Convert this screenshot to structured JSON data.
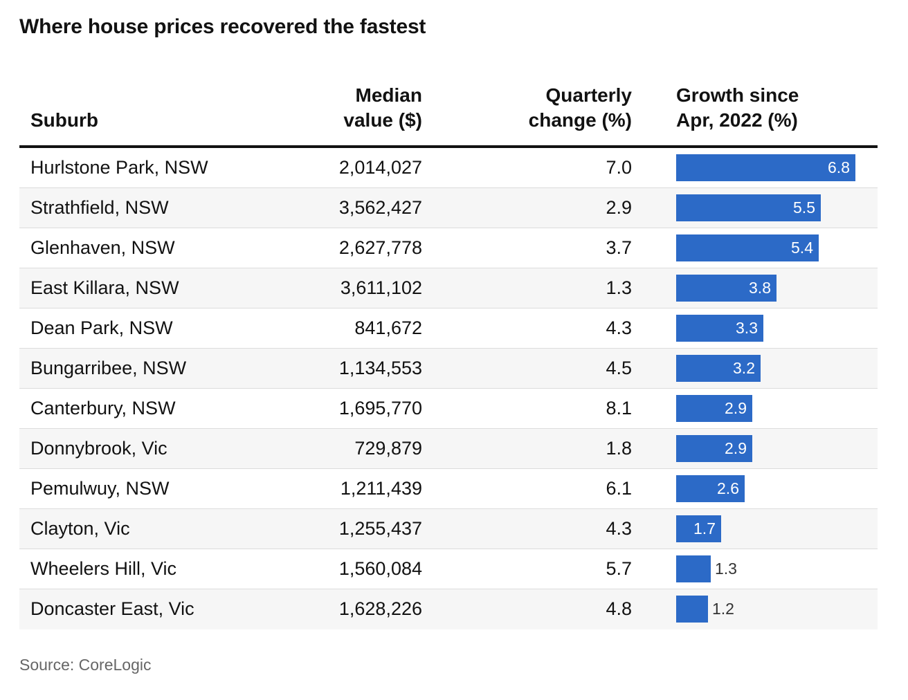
{
  "title": "Where house prices recovered the fastest",
  "headers": {
    "suburb": "Suburb",
    "median_line1": "Median",
    "median_line2": "value ($)",
    "quarterly_line1": "Quarterly",
    "quarterly_line2": "change (%)",
    "growth_line1": "Growth since",
    "growth_line2": "Apr, 2022 (%)"
  },
  "colors": {
    "bar": "#2c6ac7",
    "row_alt": "#f6f6f6",
    "text": "#121212"
  },
  "chart_data": {
    "type": "table",
    "title": "Where house prices recovered the fastest",
    "columns": [
      "Suburb",
      "Median value ($)",
      "Quarterly change (%)",
      "Growth since Apr, 2022 (%)"
    ],
    "rows": [
      {
        "suburb": "Hurlstone Park, NSW",
        "median": "2,014,027",
        "quarterly": "7.0",
        "growth": 6.8
      },
      {
        "suburb": "Strathfield, NSW",
        "median": "3,562,427",
        "quarterly": "2.9",
        "growth": 5.5
      },
      {
        "suburb": "Glenhaven, NSW",
        "median": "2,627,778",
        "quarterly": "3.7",
        "growth": 5.4
      },
      {
        "suburb": "East Killara, NSW",
        "median": "3,611,102",
        "quarterly": "1.3",
        "growth": 3.8
      },
      {
        "suburb": "Dean Park, NSW",
        "median": "841,672",
        "quarterly": "4.3",
        "growth": 3.3
      },
      {
        "suburb": "Bungarribee, NSW",
        "median": "1,134,553",
        "quarterly": "4.5",
        "growth": 3.2
      },
      {
        "suburb": "Canterbury, NSW",
        "median": "1,695,770",
        "quarterly": "8.1",
        "growth": 2.9
      },
      {
        "suburb": "Donnybrook, Vic",
        "median": "729,879",
        "quarterly": "1.8",
        "growth": 2.9
      },
      {
        "suburb": "Pemulwuy, NSW",
        "median": "1,211,439",
        "quarterly": "6.1",
        "growth": 2.6
      },
      {
        "suburb": "Clayton, Vic",
        "median": "1,255,437",
        "quarterly": "4.3",
        "growth": 1.7
      },
      {
        "suburb": "Wheelers Hill, Vic",
        "median": "1,560,084",
        "quarterly": "5.7",
        "growth": 1.3
      },
      {
        "suburb": "Doncaster East, Vic",
        "median": "1,628,226",
        "quarterly": "4.8",
        "growth": 1.2
      }
    ],
    "growth_max": 6.8
  },
  "source": "Source: CoreLogic"
}
